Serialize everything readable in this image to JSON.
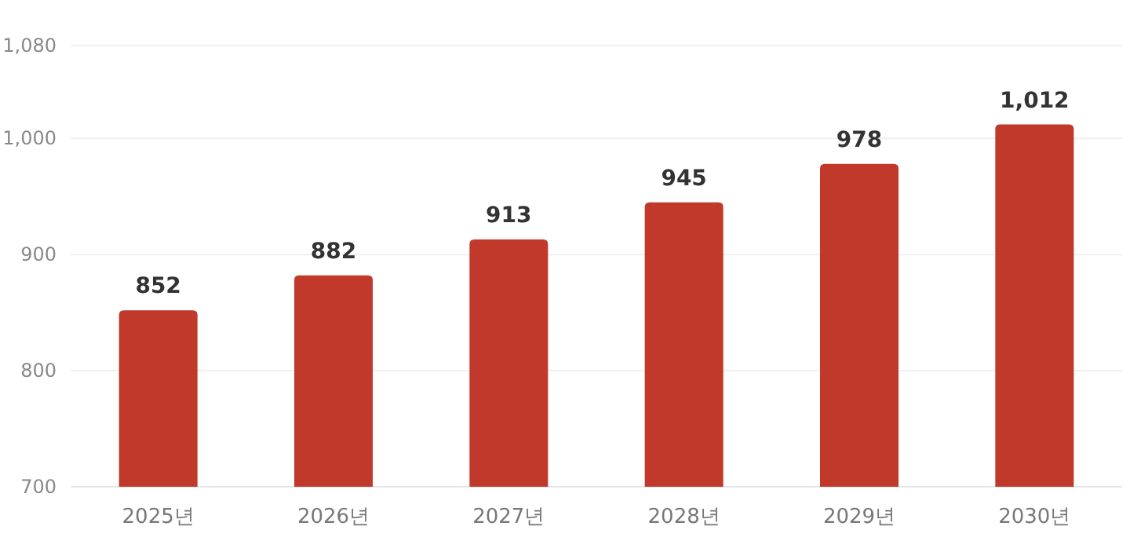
{
  "chart_data": {
    "type": "bar",
    "categories": [
      "2025년",
      "2026년",
      "2027년",
      "2028년",
      "2029년",
      "2030년"
    ],
    "values": [
      852,
      882,
      913,
      945,
      978,
      1012
    ],
    "value_labels": [
      "852",
      "882",
      "913",
      "945",
      "978",
      "1,012"
    ],
    "color": "#c0392b",
    "ylim": [
      700,
      1080
    ],
    "yticks": [
      700,
      800,
      900,
      {
        "value": 1000,
        "label": "1,000"
      },
      {
        "value": 1080,
        "label": "1,080"
      }
    ],
    "grid": "y"
  }
}
